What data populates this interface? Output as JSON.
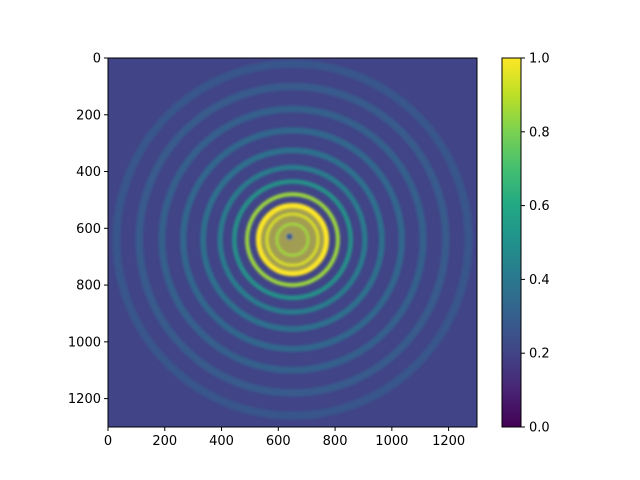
{
  "chart_data": {
    "type": "heatmap",
    "title": "",
    "xlabel": "",
    "ylabel": "",
    "xlim": [
      0,
      1300
    ],
    "ylim": [
      1300,
      0
    ],
    "y_axis_inverted": true,
    "x_ticks": [
      0,
      200,
      400,
      600,
      800,
      1000,
      1200
    ],
    "y_ticks": [
      0,
      200,
      400,
      600,
      800,
      1000,
      1200
    ],
    "colormap": "viridis",
    "color_range": [
      0.0,
      1.0
    ],
    "colorbar_ticks": [
      "0.0",
      "0.2",
      "0.4",
      "0.6",
      "0.8",
      "1.0"
    ],
    "pattern": {
      "description": "concentric interference rings",
      "center": [
        650,
        640
      ],
      "rings": [
        {
          "radius": 55,
          "width": 10,
          "value": 0.85
        },
        {
          "radius": 90,
          "width": 10,
          "value": 0.95
        },
        {
          "radius": 120,
          "width": 18,
          "value": 1.0
        },
        {
          "radius": 160,
          "width": 14,
          "value": 0.85
        },
        {
          "radius": 205,
          "width": 16,
          "value": 0.55
        },
        {
          "radius": 255,
          "width": 18,
          "value": 0.45
        },
        {
          "radius": 315,
          "width": 20,
          "value": 0.4
        },
        {
          "radius": 385,
          "width": 22,
          "value": 0.35
        },
        {
          "radius": 460,
          "width": 24,
          "value": 0.32
        },
        {
          "radius": 540,
          "width": 26,
          "value": 0.3
        },
        {
          "radius": 620,
          "width": 28,
          "value": 0.28
        }
      ],
      "background_value": 0.2
    },
    "grid": false,
    "colorbar_position": "right"
  }
}
